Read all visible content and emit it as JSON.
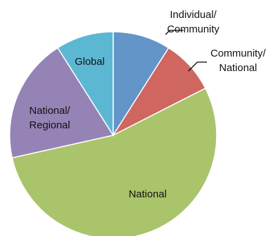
{
  "chart_data": {
    "type": "pie",
    "title": "",
    "start_angle_deg": -90,
    "direction": "clockwise",
    "slices": [
      {
        "label": [
          "Individual/",
          "Community"
        ],
        "value": 9,
        "color": "#6495c8"
      },
      {
        "label": [
          "Community/",
          "National"
        ],
        "value": 8.5,
        "color": "#cf6660"
      },
      {
        "label": [
          "National"
        ],
        "value": 54,
        "color": "#a9c46a"
      },
      {
        "label": [
          "National/",
          "Regional"
        ],
        "value": 19.5,
        "color": "#9683b6"
      },
      {
        "label": [
          "Global"
        ],
        "value": 9,
        "color": "#5cb8d2"
      }
    ]
  }
}
